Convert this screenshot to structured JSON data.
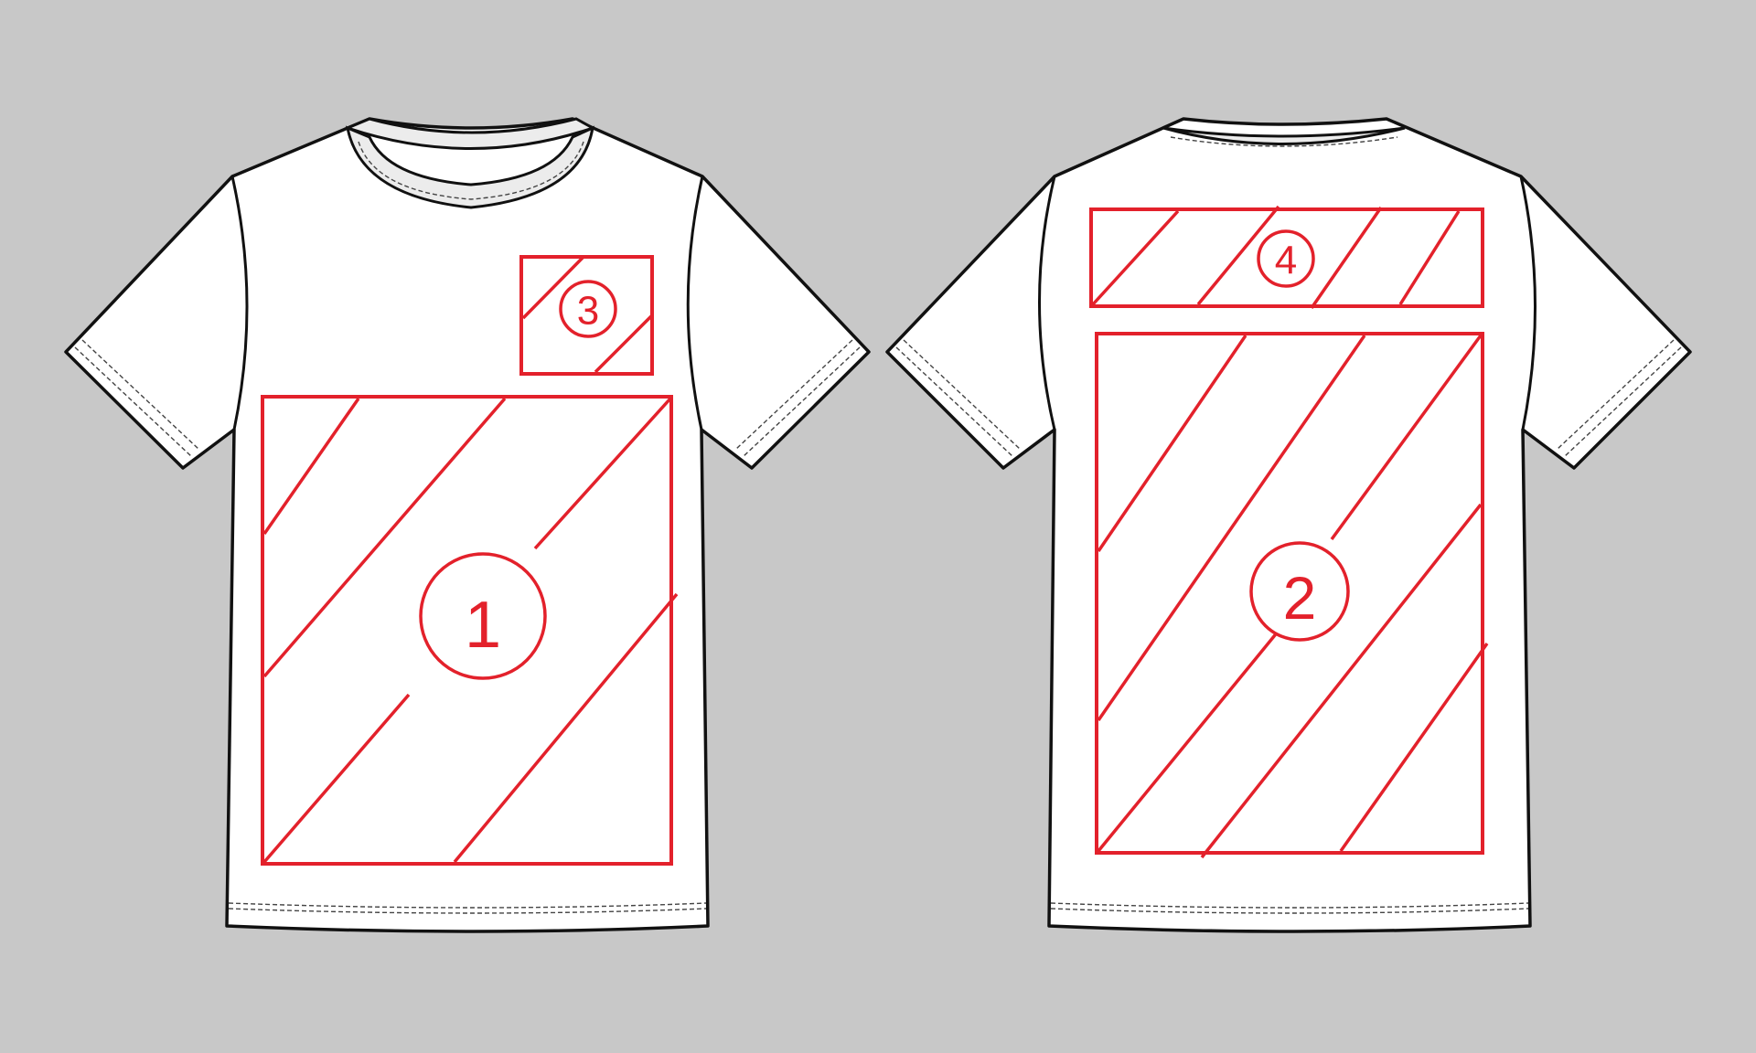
{
  "colors": {
    "background": "#c8c8c8",
    "shirt_fill": "#ffffff",
    "outline": "#111111",
    "zone_red": "#e3212b"
  },
  "front_view": {
    "zones": [
      {
        "label": "1"
      },
      {
        "label": "3"
      }
    ]
  },
  "back_view": {
    "zones": [
      {
        "label": "4"
      },
      {
        "label": "2"
      }
    ]
  }
}
